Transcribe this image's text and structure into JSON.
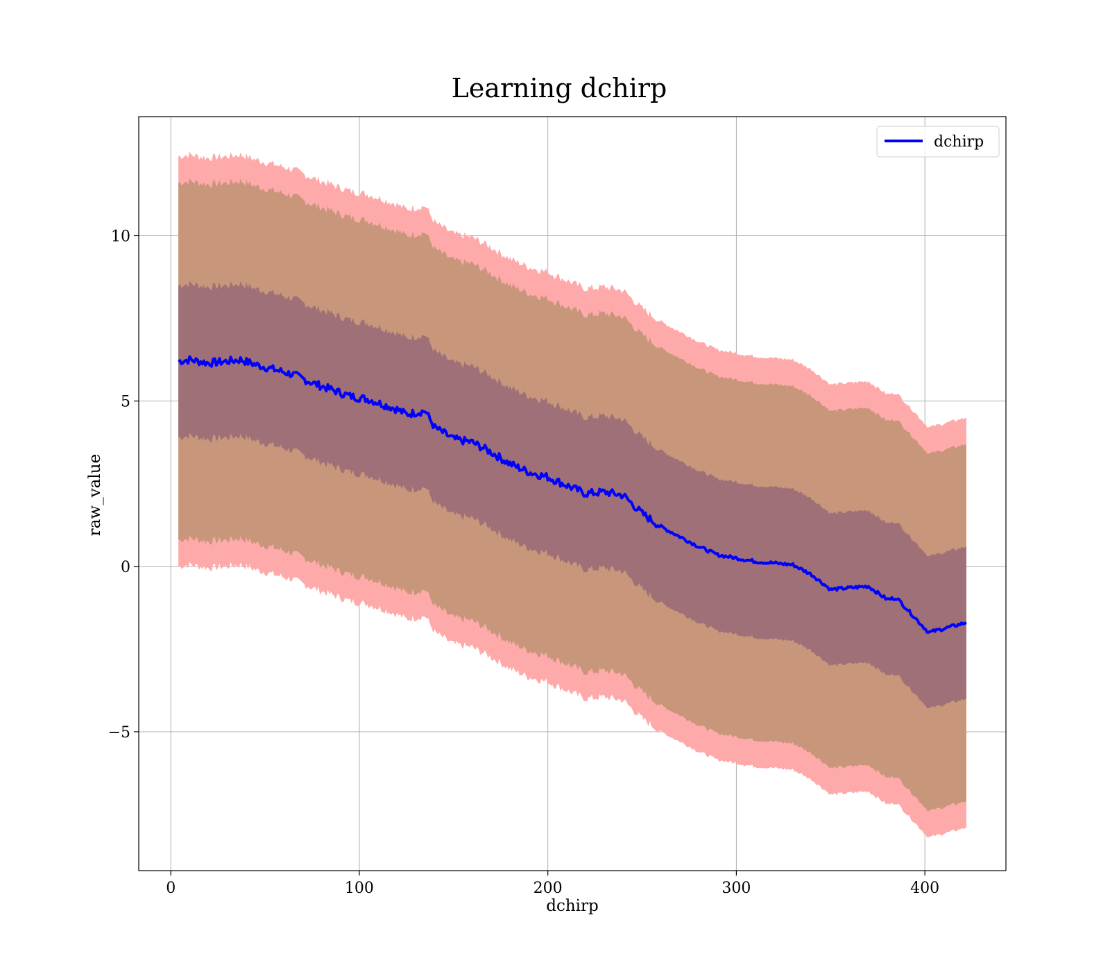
{
  "chart_data": {
    "type": "line",
    "title": "Learning dchirp",
    "xlabel": "dchirp",
    "ylabel": "raw_value",
    "xlim": [
      -17,
      443
    ],
    "ylim": [
      -9.2,
      13.6
    ],
    "xticks": [
      0,
      100,
      200,
      300,
      400
    ],
    "yticks": [
      -5,
      0,
      5,
      10
    ],
    "ytick_labels": [
      "−5",
      "0",
      "5",
      "10"
    ],
    "grid": true,
    "legend": {
      "placement": "top-right",
      "entries": [
        "dchirp"
      ]
    },
    "colors": {
      "line": "#0000ff",
      "band_outer": "#ffaaaa",
      "band_middle": "#c8967a",
      "band_inner": "#a07078",
      "grid": "#b0b0b0"
    },
    "series": [
      {
        "name": "dchirp",
        "x": [
          4,
          10,
          20,
          30,
          37,
          45,
          55,
          65,
          75,
          85,
          95,
          105,
          115,
          120,
          125,
          135,
          140,
          150,
          160,
          170,
          180,
          190,
          200,
          210,
          220,
          230,
          240,
          250,
          260,
          270,
          280,
          290,
          300,
          310,
          320,
          330,
          340,
          350,
          360,
          370,
          380,
          385,
          402,
          422
        ],
        "y": [
          6.2,
          6.25,
          6.15,
          6.2,
          6.25,
          6.1,
          5.95,
          5.8,
          5.55,
          5.35,
          5.15,
          5.05,
          4.85,
          4.75,
          4.6,
          4.7,
          4.2,
          3.85,
          3.75,
          3.45,
          3.1,
          2.85,
          2.7,
          2.45,
          2.2,
          2.25,
          2.15,
          1.6,
          1.2,
          0.9,
          0.6,
          0.35,
          0.25,
          0.15,
          0.1,
          0.05,
          -0.25,
          -0.7,
          -0.65,
          -0.6,
          -1.0,
          -0.95,
          -2.0,
          -1.7
        ],
        "bands": [
          {
            "level": "inner",
            "offset_upper": 2.3,
            "offset_lower": 2.3
          },
          {
            "level": "middle",
            "offset_upper": 5.4,
            "offset_lower": 5.4
          },
          {
            "level": "outer",
            "offset_upper": 6.2,
            "offset_lower": 6.2
          }
        ]
      }
    ]
  }
}
